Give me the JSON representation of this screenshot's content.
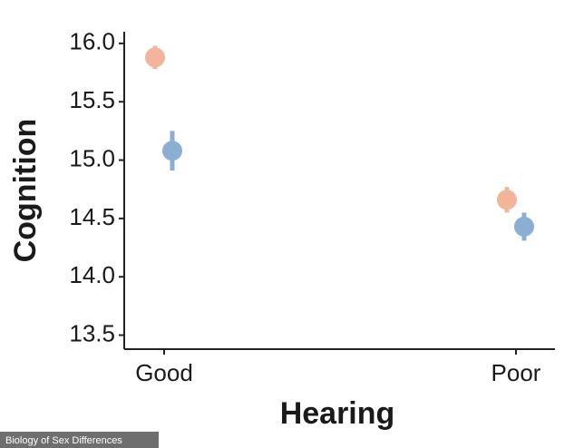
{
  "chart_data": {
    "type": "dot-errorbar",
    "x_label": "Hearing",
    "y_label": "Cognition",
    "categories": [
      "Good",
      "Poor"
    ],
    "series": [
      {
        "color": "#f2b59c",
        "values": [
          15.88,
          14.66
        ],
        "errors": [
          0.1,
          0.11
        ]
      },
      {
        "color": "#8daed3",
        "values": [
          15.08,
          14.43
        ],
        "errors": [
          0.17,
          0.12
        ]
      }
    ],
    "ylim": [
      13.38,
      16.1
    ],
    "yticks": [
      {
        "value": 13.5,
        "label": "13.5"
      },
      {
        "value": 14,
        "label": "14.0"
      },
      {
        "value": 14.5,
        "label": "14.5"
      },
      {
        "value": 15,
        "label": "15.0"
      },
      {
        "value": 15.5,
        "label": "15.5"
      },
      {
        "value": 16,
        "label": "16.0"
      }
    ],
    "source": "Biology of Sex Differences"
  }
}
